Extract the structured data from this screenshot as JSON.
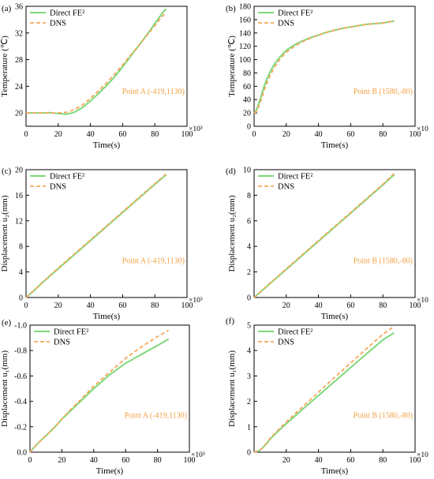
{
  "colors": {
    "fe2": "#7ed87a",
    "dns": "#f5a95a",
    "annotation": "#f0a040",
    "axis": "#000000"
  },
  "chart_data": [
    {
      "type": "line",
      "panel_label": "(a)",
      "xlabel": "Time(s)",
      "ylabel": "Temperature (℃)",
      "multiplier": "×10³",
      "annotation": "Point A (-419,1130)",
      "xlim": [
        0,
        100
      ],
      "ylim": [
        18,
        36
      ],
      "xticks": [
        0,
        20,
        40,
        60,
        80,
        100
      ],
      "yticks": [
        20,
        24,
        28,
        32,
        36
      ],
      "series": [
        {
          "name": "Direct FE²",
          "x": [
            0,
            5,
            10,
            15,
            20,
            25,
            30,
            35,
            40,
            45,
            50,
            55,
            60,
            65,
            70,
            75,
            80,
            85,
            87
          ],
          "y": [
            20,
            20,
            20,
            20.05,
            19.9,
            19.8,
            20.1,
            20.8,
            21.8,
            22.9,
            24.1,
            25.4,
            26.9,
            28.5,
            30.1,
            31.7,
            33.4,
            35.1,
            35.6
          ]
        },
        {
          "name": "DNS",
          "x": [
            0,
            5,
            10,
            15,
            20,
            25,
            30,
            35,
            40,
            45,
            50,
            55,
            60,
            65,
            70,
            75,
            80,
            85,
            87
          ],
          "y": [
            20,
            20,
            20,
            20,
            20,
            20.1,
            20.5,
            21.2,
            22.2,
            23.3,
            24.5,
            25.8,
            27.2,
            28.7,
            30.1,
            31.6,
            33.1,
            34.6,
            35.1
          ]
        }
      ]
    },
    {
      "type": "line",
      "panel_label": "(b)",
      "xlabel": "Time(s)",
      "ylabel": "Temperature (℃)",
      "multiplier": "×10",
      "annotation": "Point B (1580,-80)",
      "xlim": [
        0,
        100
      ],
      "ylim": [
        0,
        180
      ],
      "xticks": [
        0,
        20,
        40,
        60,
        80,
        100
      ],
      "yticks": [
        0,
        20,
        40,
        60,
        80,
        100,
        120,
        140,
        160,
        180
      ],
      "series": [
        {
          "name": "Direct FE²",
          "x": [
            0,
            1,
            2,
            4,
            6,
            8,
            10,
            12,
            15,
            18,
            20,
            25,
            30,
            35,
            40,
            45,
            50,
            55,
            60,
            65,
            70,
            75,
            80,
            85,
            87
          ],
          "y": [
            20,
            22,
            28,
            42,
            58,
            71,
            82,
            91,
            101,
            109,
            114,
            122,
            128,
            133,
            137,
            141,
            144,
            147,
            149,
            151,
            153,
            154,
            155,
            157,
            158
          ]
        },
        {
          "name": "DNS",
          "x": [
            0,
            1,
            2,
            4,
            6,
            8,
            10,
            12,
            15,
            18,
            20,
            25,
            30,
            35,
            40,
            45,
            50,
            55,
            60,
            65,
            70,
            75,
            80,
            85,
            87
          ],
          "y": [
            20,
            21,
            25,
            37,
            52,
            65,
            76,
            86,
            97,
            106,
            111,
            120,
            127,
            132,
            137,
            141,
            144,
            147,
            149,
            151,
            153,
            154,
            155,
            157,
            158
          ]
        }
      ]
    },
    {
      "type": "line",
      "panel_label": "(c)",
      "xlabel": "Time(s)",
      "ylabel": "Displacement u₂(mm)",
      "multiplier": "×10³",
      "annotation": "Point A (-419,1130)",
      "xlim": [
        0,
        100
      ],
      "ylim": [
        0,
        20
      ],
      "xticks": [
        0,
        20,
        40,
        60,
        80,
        100
      ],
      "yticks": [
        0,
        4,
        8,
        12,
        16,
        20
      ],
      "series": [
        {
          "name": "Direct FE²",
          "x": [
            0,
            5,
            10,
            20,
            30,
            40,
            50,
            60,
            70,
            80,
            87
          ],
          "y": [
            0,
            1.1,
            2.3,
            4.5,
            6.7,
            8.9,
            11.1,
            13.3,
            15.5,
            17.7,
            19.2
          ]
        },
        {
          "name": "DNS",
          "x": [
            0,
            5,
            10,
            20,
            30,
            40,
            50,
            60,
            70,
            80,
            87
          ],
          "y": [
            0,
            1.15,
            2.35,
            4.6,
            6.8,
            9.0,
            11.2,
            13.4,
            15.6,
            17.8,
            19.3
          ]
        }
      ]
    },
    {
      "type": "line",
      "panel_label": "(d)",
      "xlabel": "Time(s)",
      "ylabel": "Displacement u₂(mm)",
      "multiplier": "×10",
      "annotation": "Point B (1580,-80)",
      "xlim": [
        0,
        100
      ],
      "ylim": [
        0,
        10
      ],
      "xticks": [
        20,
        40,
        60,
        80,
        100
      ],
      "yticks": [
        0,
        2,
        4,
        6,
        8,
        10
      ],
      "series": [
        {
          "name": "Direct FE²",
          "x": [
            0,
            5,
            10,
            20,
            30,
            40,
            50,
            60,
            70,
            80,
            87
          ],
          "y": [
            0,
            0.55,
            1.1,
            2.2,
            3.3,
            4.4,
            5.5,
            6.6,
            7.7,
            8.8,
            9.6
          ]
        },
        {
          "name": "DNS",
          "x": [
            0,
            5,
            10,
            20,
            30,
            40,
            50,
            60,
            70,
            80,
            87
          ],
          "y": [
            0,
            0.57,
            1.13,
            2.25,
            3.35,
            4.45,
            5.55,
            6.65,
            7.75,
            8.85,
            9.7
          ]
        }
      ]
    },
    {
      "type": "line",
      "panel_label": "(e)",
      "xlabel": "Time(s)",
      "ylabel": "Displacement u₁(mm)",
      "multiplier": "×10³",
      "annotation": "Point A (-419,1130)",
      "xlim": [
        0,
        100
      ],
      "ylim": [
        0,
        -1.0
      ],
      "xticks": [
        0,
        20,
        40,
        60,
        80,
        100
      ],
      "yticks": [
        "0.0",
        "-0.2",
        "-0.4",
        "-0.6",
        "-0.8",
        "-1.0"
      ],
      "series": [
        {
          "name": "Direct FE²",
          "x": [
            0,
            2,
            5,
            10,
            15,
            20,
            25,
            30,
            40,
            50,
            60,
            70,
            80,
            87
          ],
          "y": [
            0,
            -0.03,
            -0.07,
            -0.13,
            -0.19,
            -0.26,
            -0.32,
            -0.38,
            -0.5,
            -0.61,
            -0.7,
            -0.77,
            -0.84,
            -0.89
          ]
        },
        {
          "name": "DNS",
          "x": [
            0,
            2,
            5,
            10,
            15,
            20,
            25,
            30,
            40,
            50,
            60,
            70,
            80,
            87
          ],
          "y": [
            0,
            -0.03,
            -0.07,
            -0.13,
            -0.19,
            -0.26,
            -0.33,
            -0.39,
            -0.52,
            -0.63,
            -0.74,
            -0.83,
            -0.91,
            -0.96
          ]
        }
      ]
    },
    {
      "type": "line",
      "panel_label": "(f)",
      "xlabel": "Time(s)",
      "ylabel": "Displacement u₁(mm)",
      "multiplier": "×10",
      "annotation": "Point B (1580,-80)",
      "xlim": [
        0,
        100
      ],
      "ylim": [
        0,
        5
      ],
      "xticks": [
        20,
        40,
        60,
        80,
        100
      ],
      "yticks": [
        0,
        1,
        2,
        3,
        4,
        5
      ],
      "series": [
        {
          "name": "Direct FE²",
          "x": [
            0,
            3,
            5,
            8,
            10,
            15,
            20,
            30,
            40,
            50,
            60,
            70,
            80,
            87
          ],
          "y": [
            0,
            0.05,
            0.15,
            0.35,
            0.52,
            0.83,
            1.12,
            1.68,
            2.23,
            2.78,
            3.33,
            3.88,
            4.42,
            4.7
          ]
        },
        {
          "name": "DNS",
          "x": [
            0,
            3,
            5,
            8,
            10,
            15,
            20,
            30,
            40,
            50,
            60,
            70,
            80,
            87
          ],
          "y": [
            0,
            0.05,
            0.15,
            0.37,
            0.55,
            0.88,
            1.19,
            1.78,
            2.36,
            2.94,
            3.51,
            4.08,
            4.64,
            4.95
          ]
        }
      ]
    }
  ]
}
